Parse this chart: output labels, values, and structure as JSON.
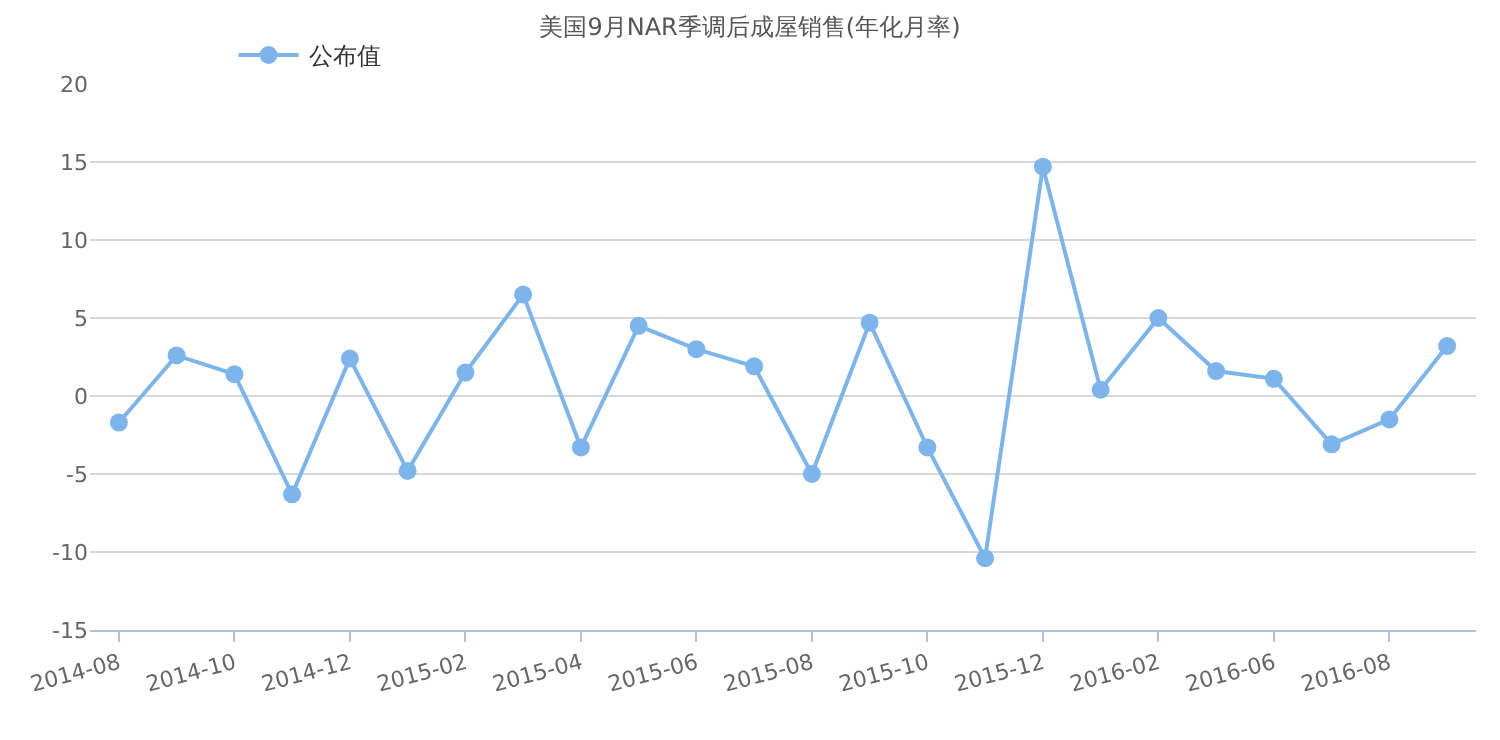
{
  "chart_data": {
    "type": "line",
    "title": "美国9月NAR季调后成屋销售(年化月率)",
    "categories": [
      "2014-08",
      null,
      "2014-10",
      null,
      "2014-12",
      null,
      "2015-02",
      null,
      "2015-04",
      null,
      "2015-06",
      null,
      "2015-08",
      null,
      "2015-10",
      null,
      "2015-12",
      null,
      "2016-02",
      null,
      "2016-06",
      null,
      "2016-08",
      null
    ],
    "series": [
      {
        "name": "公布值",
        "color": "#7cb5ec",
        "values": [
          -1.7,
          2.6,
          1.4,
          -6.3,
          2.4,
          -4.8,
          1.5,
          6.5,
          -3.3,
          4.5,
          3.0,
          1.9,
          -5.0,
          4.7,
          -3.3,
          -10.4,
          14.7,
          0.4,
          5.0,
          1.6,
          1.1,
          -3.1,
          -1.5,
          3.2
        ]
      }
    ],
    "ylim": [
      -15,
      20
    ],
    "yticks": [
      -15,
      -10,
      -5,
      0,
      5,
      10,
      15,
      20
    ],
    "grid": "y",
    "legend": "top left",
    "marker": "circle",
    "line_style": "solid"
  }
}
